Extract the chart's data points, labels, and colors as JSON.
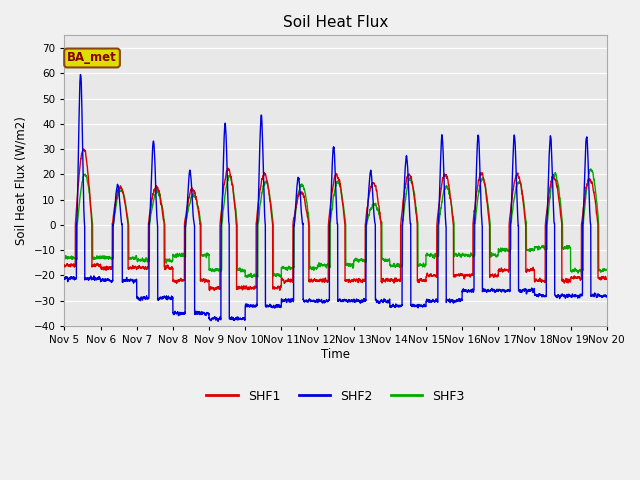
{
  "title": "Soil Heat Flux",
  "ylabel": "Soil Heat Flux (W/m2)",
  "xlabel": "Time",
  "ylim": [
    -40,
    75
  ],
  "yticks": [
    -40,
    -30,
    -20,
    -10,
    0,
    10,
    20,
    30,
    40,
    50,
    60,
    70
  ],
  "fig_bg_color": "#f0f0f0",
  "plot_bg_color": "#e8e8e8",
  "grid_color": "#ffffff",
  "line_colors": {
    "SHF1": "#dd0000",
    "SHF2": "#0000dd",
    "SHF3": "#00aa00"
  },
  "line_width": 1.0,
  "annotation_text": "BA_met",
  "annotation_bg": "#dddd00",
  "annotation_border": "#8B4513",
  "annotation_text_color": "#880000",
  "xtick_labels": [
    "Nov 5",
    "Nov 6",
    "Nov 7",
    "Nov 8",
    "Nov 9",
    "Nov 10",
    "Nov 11",
    "Nov 12",
    "Nov 13",
    "Nov 14",
    "Nov 15",
    "Nov 16",
    "Nov 17",
    "Nov 18",
    "Nov 19",
    "Nov 20"
  ],
  "legend_entries": [
    "SHF1",
    "SHF2",
    "SHF3"
  ]
}
